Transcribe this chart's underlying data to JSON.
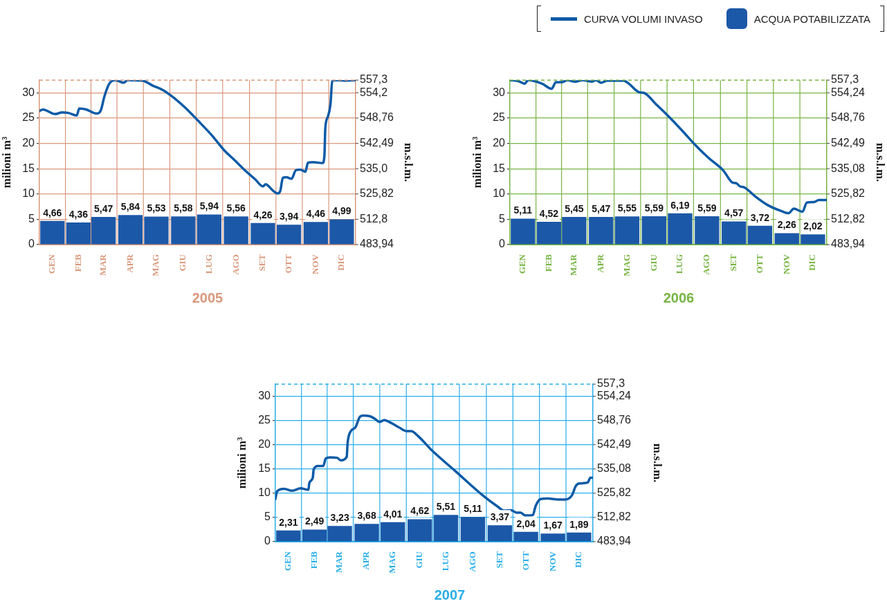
{
  "chart_data": [
    {
      "type": "bar",
      "title": "2005",
      "ylabel": "milioni m³",
      "y2label": "m.s.l.m.",
      "legend": "top right",
      "grid": true,
      "marker": "none",
      "line_style": "solid",
      "xlim": [
        "2005-01-01",
        "2006-01-01"
      ],
      "xticks": [
        {
          "value": "2005-01-16",
          "label": "GEN"
        },
        {
          "value": "2005-02-15",
          "label": "FEB"
        },
        {
          "value": "2005-03-16",
          "label": "MAR"
        },
        {
          "value": "2005-04-16",
          "label": "APR"
        },
        {
          "value": "2005-05-16",
          "label": "MAG"
        },
        {
          "value": "2005-06-16",
          "label": "GIU"
        },
        {
          "value": "2005-07-16",
          "label": "LUG"
        },
        {
          "value": "2005-08-16",
          "label": "AGO"
        },
        {
          "value": "2005-09-16",
          "label": "SET"
        },
        {
          "value": "2005-10-16",
          "label": "OTT"
        },
        {
          "value": "2005-11-16",
          "label": "NOV"
        },
        {
          "value": "2005-12-16",
          "label": "DIC"
        }
      ],
      "ylim": [
        0,
        32.5
      ],
      "yticks": [
        0,
        5,
        10,
        15,
        20,
        25,
        30
      ],
      "annotations": [
        "483,94",
        "512,8",
        "525,82",
        "535,0",
        "542,49",
        "548,76",
        "554,2",
        "557,3"
      ],
      "series": [
        {
          "name": "CURVA VOLUMI INVASO",
          "type": "line",
          "color": "#0b5aa6",
          "x": [
            "2005-01-01",
            "2005-01-05",
            "2005-01-19",
            "2005-01-27",
            "2005-02-04",
            "2005-02-13",
            "2005-02-16",
            "2005-02-24",
            "2005-03-08",
            "2005-03-13",
            "2005-03-17",
            "2005-03-23",
            "2005-03-30",
            "2005-04-08",
            "2005-04-13",
            "2005-04-30",
            "2005-05-12",
            "2005-05-24",
            "2005-06-03",
            "2005-06-18",
            "2005-07-03",
            "2005-07-19",
            "2005-08-03",
            "2005-08-13",
            "2005-08-28",
            "2005-09-07",
            "2005-09-16",
            "2005-09-19",
            "2005-09-28",
            "2005-10-03",
            "2005-10-06",
            "2005-10-09",
            "2005-10-13",
            "2005-10-19",
            "2005-10-24",
            "2005-10-29",
            "2005-11-04",
            "2005-11-07",
            "2005-11-13",
            "2005-11-24",
            "2005-11-26",
            "2005-11-27",
            "2005-11-30",
            "2005-12-03",
            "2005-12-05",
            "2005-12-09",
            "2005-12-20",
            "2006-01-01"
          ],
          "values": [
            26.4,
            26.7,
            25.8,
            26.1,
            26.0,
            25.5,
            26.9,
            26.7,
            25.9,
            26.6,
            29.3,
            31.9,
            32.5,
            32.0,
            32.5,
            32.4,
            31.4,
            30.5,
            29.3,
            27.1,
            24.5,
            21.6,
            18.5,
            16.9,
            14.4,
            12.9,
            11.5,
            11.9,
            10.6,
            10.1,
            10.6,
            13.2,
            13.3,
            13.0,
            14.7,
            14.8,
            14.4,
            16.2,
            16.3,
            16.1,
            17.7,
            23.0,
            25.3,
            27.8,
            32.4,
            32.5,
            32.4,
            32.5
          ]
        },
        {
          "name": "ACQUA POTABILIZZATA",
          "color": "#1c58a8",
          "x": [
            "2005-01-16",
            "2005-02-15",
            "2005-03-16",
            "2005-04-16",
            "2005-05-16",
            "2005-06-16",
            "2005-07-16",
            "2005-08-16",
            "2005-09-16",
            "2005-10-16",
            "2005-11-16",
            "2005-12-16"
          ],
          "values": [
            4.66,
            4.36,
            5.47,
            5.84,
            5.53,
            5.58,
            5.94,
            5.56,
            4.26,
            3.94,
            4.46,
            4.99
          ],
          "value_labels": [
            "4,66",
            "4,36",
            "5,47",
            "5,84",
            "5,53",
            "5,58",
            "5,94",
            "5,56",
            "4,26",
            "3,94",
            "4,46",
            "4,99"
          ]
        }
      ]
    },
    {
      "type": "bar",
      "title": "2006",
      "ylabel": "milioni m³",
      "y2label": "m.s.l.m.",
      "grid": true,
      "marker": "none",
      "line_style": "solid",
      "xlim": [
        "2006-01-01",
        "2007-01-01"
      ],
      "xticks": [
        {
          "value": "2006-01-16",
          "label": "GEN"
        },
        {
          "value": "2006-02-15",
          "label": "FEB"
        },
        {
          "value": "2006-03-16",
          "label": "MAR"
        },
        {
          "value": "2006-04-16",
          "label": "APR"
        },
        {
          "value": "2006-05-16",
          "label": "MAG"
        },
        {
          "value": "2006-06-16",
          "label": "GIU"
        },
        {
          "value": "2006-07-16",
          "label": "LUG"
        },
        {
          "value": "2006-08-16",
          "label": "AGO"
        },
        {
          "value": "2006-09-16",
          "label": "SET"
        },
        {
          "value": "2006-10-16",
          "label": "OTT"
        },
        {
          "value": "2006-11-16",
          "label": "NOV"
        },
        {
          "value": "2006-12-16",
          "label": "DIC"
        }
      ],
      "ylim": [
        0,
        32.5
      ],
      "yticks": [
        0,
        5,
        10,
        15,
        20,
        25,
        30
      ],
      "annotations": [
        "483,94",
        "512,82",
        "525,82",
        "535,08",
        "542,49",
        "548,76",
        "554,24",
        "557,3"
      ],
      "series": [
        {
          "type": "line",
          "color": "#0b5aa6",
          "x": [
            "2006-01-01",
            "2006-01-11",
            "2006-01-18",
            "2006-01-22",
            "2006-02-07",
            "2006-02-18",
            "2006-02-23",
            "2006-03-02",
            "2006-03-08",
            "2006-03-17",
            "2006-03-26",
            "2006-04-05",
            "2006-04-10",
            "2006-04-16",
            "2006-04-23",
            "2006-05-12",
            "2006-05-18",
            "2006-05-30",
            "2006-06-04",
            "2006-06-18",
            "2006-07-03",
            "2006-07-18",
            "2006-08-03",
            "2006-08-18",
            "2006-09-04",
            "2006-09-14",
            "2006-09-19",
            "2006-09-23",
            "2006-09-28",
            "2006-10-10",
            "2006-10-25",
            "2006-11-10",
            "2006-11-18",
            "2006-11-24",
            "2006-12-04",
            "2006-12-09",
            "2006-12-17",
            "2006-12-23",
            "2007-01-01"
          ],
          "values": [
            32.5,
            32.3,
            31.8,
            32.5,
            31.8,
            30.8,
            32.1,
            32.1,
            32.5,
            32.2,
            32.5,
            32.2,
            32.5,
            32.0,
            32.4,
            32.4,
            31.8,
            30.1,
            30.0,
            27.8,
            25.3,
            22.6,
            19.6,
            17.1,
            14.6,
            12.3,
            12.1,
            11.5,
            11.3,
            9.6,
            7.8,
            6.6,
            6.2,
            7.1,
            6.5,
            8.3,
            8.4,
            8.8,
            8.8
          ]
        },
        {
          "color": "#1c58a8",
          "x": [
            "2006-01-16",
            "2006-02-15",
            "2006-03-16",
            "2006-04-16",
            "2006-05-16",
            "2006-06-16",
            "2006-07-16",
            "2006-08-16",
            "2006-09-16",
            "2006-10-16",
            "2006-11-16",
            "2006-12-16"
          ],
          "values": [
            5.11,
            4.52,
            5.45,
            5.47,
            5.55,
            5.59,
            6.19,
            5.59,
            4.57,
            3.72,
            2.26,
            2.02
          ],
          "value_labels": [
            "5,11",
            "4,52",
            "5,45",
            "5,47",
            "5,55",
            "5,59",
            "6,19",
            "5,59",
            "4,57",
            "3,72",
            "2,26",
            "2,02"
          ]
        }
      ]
    },
    {
      "type": "bar",
      "title": "2007",
      "ylabel": "milioni m³",
      "y2label": "m.s.l.m.",
      "grid": true,
      "marker": "none",
      "line_style": "solid",
      "xlim": [
        "2007-01-01",
        "2008-01-01"
      ],
      "xticks": [
        {
          "value": "2007-01-16",
          "label": "GEN"
        },
        {
          "value": "2007-02-15",
          "label": "FEB"
        },
        {
          "value": "2007-03-16",
          "label": "MAR"
        },
        {
          "value": "2007-04-16",
          "label": "APR"
        },
        {
          "value": "2007-05-16",
          "label": "MAG"
        },
        {
          "value": "2007-06-16",
          "label": "GIU"
        },
        {
          "value": "2007-07-16",
          "label": "LUG"
        },
        {
          "value": "2007-08-16",
          "label": "AGO"
        },
        {
          "value": "2007-09-16",
          "label": "SET"
        },
        {
          "value": "2007-10-16",
          "label": "OTT"
        },
        {
          "value": "2007-11-16",
          "label": "NOV"
        },
        {
          "value": "2007-12-16",
          "label": "DIC"
        }
      ],
      "ylim": [
        0,
        32.5
      ],
      "yticks": [
        0,
        5,
        10,
        15,
        20,
        25,
        30
      ],
      "annotations": [
        "483,94",
        "512,82",
        "525,82",
        "535,08",
        "542,49",
        "548,76",
        "554,24",
        "557,3"
      ],
      "series": [
        {
          "type": "line",
          "color": "#0b5aa6",
          "x": [
            "2007-01-01",
            "2007-01-03",
            "2007-01-11",
            "2007-01-20",
            "2007-01-30",
            "2007-02-08",
            "2007-02-09",
            "2007-02-13",
            "2007-02-14",
            "2007-02-19",
            "2007-02-25",
            "2007-02-28",
            "2007-03-05",
            "2007-03-13",
            "2007-03-17",
            "2007-03-24",
            "2007-03-25",
            "2007-03-28",
            "2007-04-03",
            "2007-04-08",
            "2007-04-12",
            "2007-04-19",
            "2007-04-25",
            "2007-05-01",
            "2007-05-06",
            "2007-05-14",
            "2007-05-23",
            "2007-06-01",
            "2007-06-06",
            "2007-06-14",
            "2007-06-30",
            "2007-07-26",
            "2007-08-27",
            "2007-09-13",
            "2007-09-21",
            "2007-09-29",
            "2007-10-05",
            "2007-10-10",
            "2007-10-15",
            "2007-10-24",
            "2007-10-27",
            "2007-11-02",
            "2007-11-10",
            "2007-11-22",
            "2007-11-30",
            "2007-12-08",
            "2007-12-12",
            "2007-12-16",
            "2007-12-26",
            "2007-12-29",
            "2008-01-01"
          ],
          "values": [
            8.8,
            10.4,
            10.9,
            10.5,
            11.0,
            10.7,
            12.1,
            13.2,
            14.9,
            15.6,
            15.6,
            17.2,
            17.4,
            17.3,
            16.8,
            17.5,
            20.3,
            22.6,
            23.6,
            25.7,
            26.0,
            25.9,
            25.4,
            24.7,
            25.1,
            24.5,
            23.6,
            22.8,
            22.8,
            21.8,
            18.8,
            14.7,
            9.6,
            7.3,
            6.4,
            6.5,
            6.0,
            6.0,
            5.4,
            5.5,
            7.3,
            8.8,
            8.9,
            8.7,
            8.7,
            9.6,
            11.4,
            12.0,
            12.2,
            13.2,
            13.2
          ]
        },
        {
          "color": "#1c58a8",
          "x": [
            "2007-01-16",
            "2007-02-15",
            "2007-03-16",
            "2007-04-16",
            "2007-05-16",
            "2007-06-16",
            "2007-07-16",
            "2007-08-16",
            "2007-09-16",
            "2007-10-16",
            "2007-11-16",
            "2007-12-16"
          ],
          "values": [
            2.31,
            2.49,
            3.23,
            3.68,
            4.01,
            4.62,
            5.51,
            5.11,
            3.37,
            2.04,
            1.67,
            1.89
          ],
          "value_labels": [
            "2,31",
            "2,49",
            "3,23",
            "3,68",
            "4,01",
            "4,62",
            "5,51",
            "5,11",
            "3,37",
            "2,04",
            "1,67",
            "1,89"
          ]
        }
      ]
    }
  ]
}
